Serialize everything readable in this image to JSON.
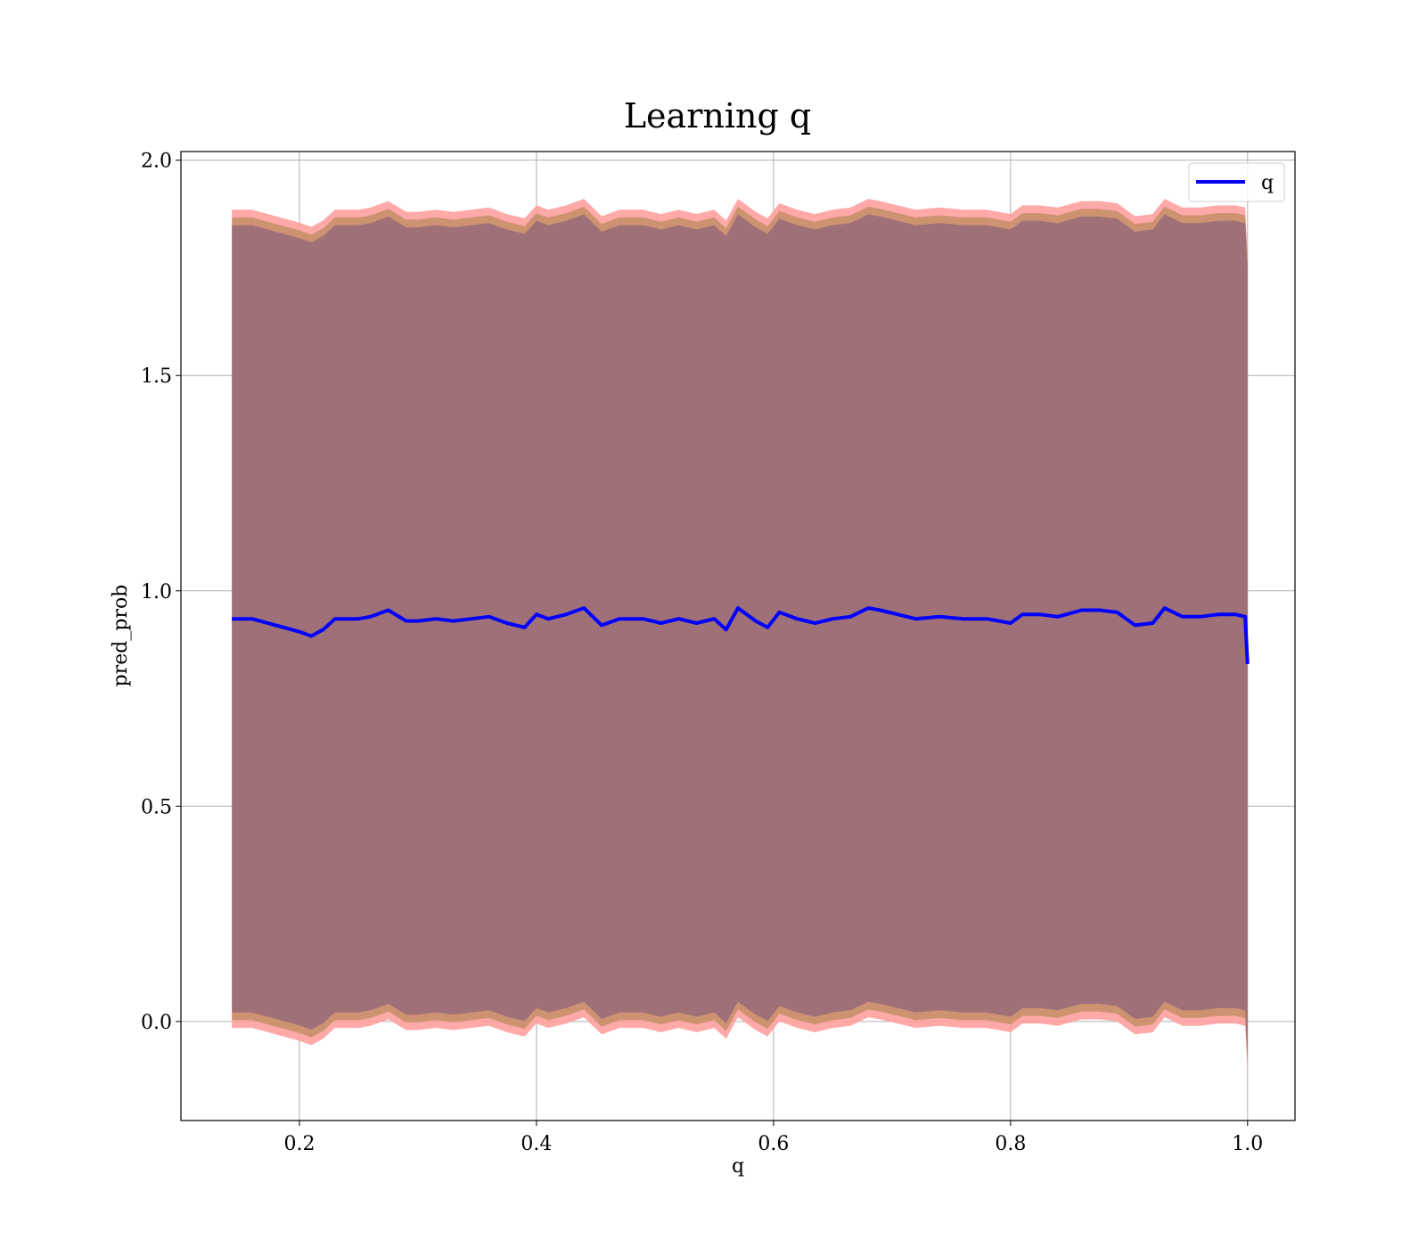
{
  "chart_data": {
    "type": "line",
    "title": "Learning q",
    "xlabel": "q",
    "ylabel": "pred_prob",
    "xlim": [
      0.1,
      1.04
    ],
    "ylim": [
      -0.23,
      2.02
    ],
    "xticks": [
      0.2,
      0.4,
      0.6,
      0.8,
      1.0
    ],
    "xtick_labels": [
      "0.2",
      "0.4",
      "0.6",
      "0.8",
      "1.0"
    ],
    "yticks": [
      0.0,
      0.5,
      1.0,
      1.5,
      2.0
    ],
    "ytick_labels": [
      "0.0",
      "0.5",
      "1.0",
      "1.5",
      "2.0"
    ],
    "grid": true,
    "legend": {
      "position": "top-right",
      "entries": [
        "q"
      ]
    },
    "colors": {
      "line": "#0000ff",
      "outer_band": "#ff9a9a",
      "inner_band": "#c8906a",
      "core_band": "#a07078",
      "grid": "#b0b0b0"
    },
    "x": [
      0.143,
      0.16,
      0.18,
      0.2,
      0.21,
      0.22,
      0.23,
      0.25,
      0.26,
      0.275,
      0.29,
      0.3,
      0.315,
      0.33,
      0.345,
      0.36,
      0.375,
      0.39,
      0.4,
      0.41,
      0.425,
      0.44,
      0.455,
      0.47,
      0.49,
      0.505,
      0.52,
      0.535,
      0.55,
      0.56,
      0.57,
      0.585,
      0.595,
      0.605,
      0.62,
      0.635,
      0.65,
      0.665,
      0.68,
      0.69,
      0.705,
      0.72,
      0.74,
      0.76,
      0.78,
      0.8,
      0.81,
      0.825,
      0.84,
      0.86,
      0.875,
      0.89,
      0.905,
      0.92,
      0.93,
      0.945,
      0.96,
      0.975,
      0.99,
      0.998,
      1.0
    ],
    "series": [
      {
        "name": "q",
        "values": [
          0.935,
          0.935,
          0.92,
          0.905,
          0.895,
          0.91,
          0.935,
          0.935,
          0.94,
          0.955,
          0.93,
          0.93,
          0.935,
          0.93,
          0.935,
          0.94,
          0.925,
          0.915,
          0.945,
          0.935,
          0.945,
          0.96,
          0.92,
          0.935,
          0.935,
          0.925,
          0.935,
          0.925,
          0.935,
          0.91,
          0.96,
          0.93,
          0.915,
          0.95,
          0.935,
          0.925,
          0.935,
          0.94,
          0.96,
          0.955,
          0.945,
          0.935,
          0.94,
          0.935,
          0.935,
          0.925,
          0.945,
          0.945,
          0.94,
          0.955,
          0.955,
          0.95,
          0.92,
          0.925,
          0.96,
          0.94,
          0.94,
          0.945,
          0.945,
          0.94,
          0.83
        ],
        "band_inner": 0.92,
        "band_outer": 0.95
      }
    ]
  }
}
